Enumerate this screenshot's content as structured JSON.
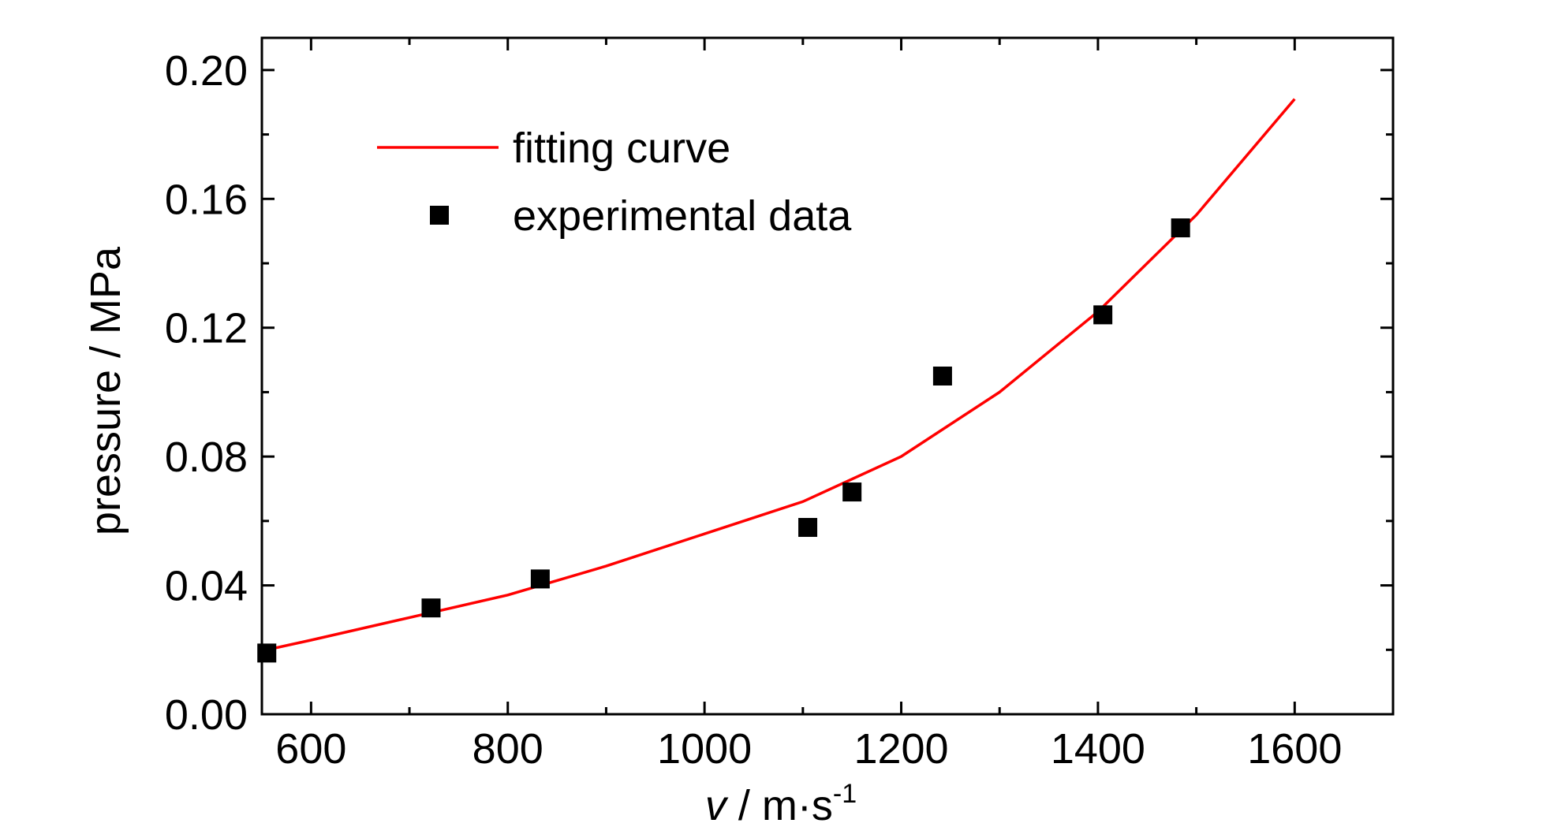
{
  "chart_data": {
    "type": "scatter",
    "xlabel": {
      "var": "v",
      "unit": " / m·s",
      "exp": "-1"
    },
    "ylabel": "pressure / MPa",
    "xlim": [
      550,
      1700
    ],
    "ylim": [
      0.0,
      0.21
    ],
    "x_ticks": [
      600,
      800,
      1000,
      1200,
      1400,
      1600
    ],
    "x_tick_labels": [
      "600",
      "800",
      "1000",
      "1200",
      "1400",
      "1600"
    ],
    "y_ticks": [
      0.0,
      0.04,
      0.08,
      0.12,
      0.16,
      0.2
    ],
    "y_tick_labels": [
      "0.00",
      "0.04",
      "0.08",
      "0.12",
      "0.16",
      "0.20"
    ],
    "legend_position": "top-left",
    "colors": {
      "fit": "#ff0000",
      "points": "#000000"
    },
    "series": [
      {
        "name": "fitting curve",
        "kind": "line",
        "x": [
          555,
          600,
          700,
          800,
          900,
          1000,
          1100,
          1200,
          1300,
          1400,
          1500,
          1600
        ],
        "y": [
          0.02,
          0.023,
          0.03,
          0.037,
          0.046,
          0.056,
          0.066,
          0.08,
          0.1,
          0.125,
          0.155,
          0.191
        ]
      },
      {
        "name": "experimental data",
        "kind": "scatter",
        "x": [
          555,
          722,
          833,
          1105,
          1150,
          1242,
          1405,
          1484
        ],
        "y": [
          0.019,
          0.033,
          0.042,
          0.058,
          0.069,
          0.105,
          0.124,
          0.151
        ]
      }
    ]
  }
}
